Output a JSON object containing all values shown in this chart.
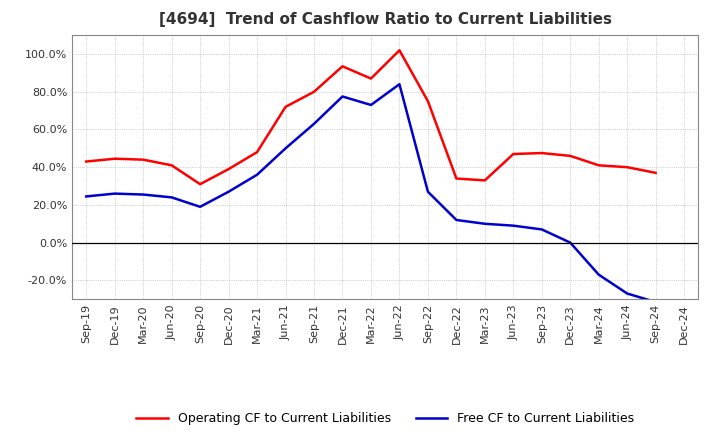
{
  "title": "[4694]  Trend of Cashflow Ratio to Current Liabilities",
  "x_labels": [
    "Sep-19",
    "Dec-19",
    "Mar-20",
    "Jun-20",
    "Sep-20",
    "Dec-20",
    "Mar-21",
    "Jun-21",
    "Sep-21",
    "Dec-21",
    "Mar-22",
    "Jun-22",
    "Sep-22",
    "Dec-22",
    "Mar-23",
    "Jun-23",
    "Sep-23",
    "Dec-23",
    "Mar-24",
    "Jun-24",
    "Sep-24",
    "Dec-24"
  ],
  "operating_cf": [
    0.43,
    0.445,
    0.44,
    0.41,
    0.31,
    0.39,
    0.48,
    0.72,
    0.8,
    0.935,
    0.87,
    1.02,
    0.75,
    0.34,
    0.33,
    0.47,
    0.475,
    0.46,
    0.41,
    0.4,
    0.37,
    null
  ],
  "free_cf": [
    0.245,
    0.26,
    0.255,
    0.24,
    0.19,
    0.27,
    0.36,
    0.5,
    0.63,
    0.775,
    0.73,
    0.84,
    0.27,
    0.12,
    0.1,
    0.09,
    0.07,
    0.0,
    -0.17,
    -0.27,
    -0.315,
    null
  ],
  "operating_color": "#ff0000",
  "free_color": "#0000cc",
  "ylim": [
    -0.3,
    1.1
  ],
  "yticks": [
    -0.2,
    0.0,
    0.2,
    0.4,
    0.6,
    0.8,
    1.0
  ],
  "background_color": "#ffffff",
  "plot_bg_color": "#ffffff",
  "grid_color": "#aaaaaa",
  "legend_op": "Operating CF to Current Liabilities",
  "legend_free": "Free CF to Current Liabilities",
  "title_color": "#333333",
  "title_fontsize": 11,
  "tick_fontsize": 8,
  "line_width": 1.8
}
